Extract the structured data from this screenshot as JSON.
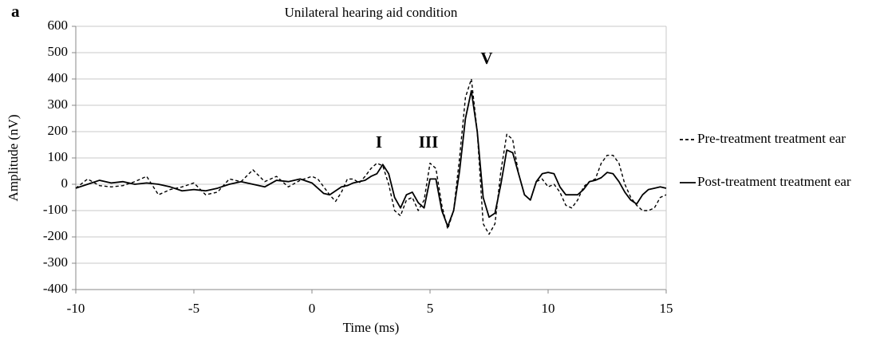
{
  "chart_data": {
    "type": "line",
    "panel_label": "a",
    "title": "Unilateral hearing aid condition",
    "x_label": "Time (ms)",
    "y_label": "Amplitude (nV)",
    "annotations": [
      "I",
      "III",
      "V"
    ],
    "xlim": [
      -10,
      15
    ],
    "xticks": [
      -10,
      -5,
      0,
      5,
      10,
      15
    ],
    "ylim": [
      -400,
      600
    ],
    "yticks": [
      -400,
      -300,
      -200,
      -100,
      0,
      100,
      200,
      300,
      400,
      500,
      600
    ],
    "grid": true,
    "legend": "right",
    "x": [
      -10,
      -9.5,
      -9,
      -8.5,
      -8,
      -7.5,
      -7,
      -6.5,
      -6,
      -5.5,
      -5,
      -4.5,
      -4,
      -3.5,
      -3,
      -2.5,
      -2,
      -1.5,
      -1,
      -0.5,
      0,
      0.25,
      0.5,
      0.75,
      1,
      1.25,
      1.5,
      1.75,
      2,
      2.25,
      2.5,
      2.75,
      3,
      3.25,
      3.5,
      3.75,
      4,
      4.25,
      4.5,
      4.75,
      5,
      5.25,
      5.5,
      5.75,
      6,
      6.25,
      6.5,
      6.75,
      7,
      7.25,
      7.5,
      7.75,
      8,
      8.25,
      8.5,
      8.75,
      9,
      9.25,
      9.5,
      9.75,
      10,
      10.25,
      10.5,
      10.75,
      11,
      11.25,
      11.5,
      11.75,
      12,
      12.25,
      12.5,
      12.75,
      13,
      13.25,
      13.5,
      13.75,
      14,
      14.25,
      14.5,
      14.75,
      15
    ],
    "series": [
      {
        "name": "Pre-treatment treatment ear",
        "color": "#000000",
        "style": "dashed",
        "values": [
          -15,
          20,
          -5,
          -10,
          -5,
          10,
          30,
          -40,
          -20,
          -10,
          5,
          -40,
          -30,
          20,
          10,
          55,
          10,
          30,
          -10,
          15,
          30,
          20,
          -10,
          -40,
          -65,
          -30,
          20,
          20,
          5,
          30,
          60,
          80,
          70,
          0,
          -100,
          -120,
          -60,
          -50,
          -100,
          -60,
          80,
          60,
          -80,
          -170,
          -100,
          100,
          330,
          400,
          200,
          -150,
          -190,
          -150,
          50,
          190,
          170,
          40,
          -40,
          -60,
          10,
          20,
          -10,
          0,
          -30,
          -80,
          -90,
          -60,
          -10,
          10,
          20,
          80,
          110,
          110,
          80,
          0,
          -50,
          -80,
          -100,
          -100,
          -90,
          -50,
          -40
        ]
      },
      {
        "name": "Post-treatment treatment ear",
        "color": "#000000",
        "style": "solid",
        "values": [
          -15,
          0,
          15,
          5,
          10,
          0,
          5,
          0,
          -10,
          -25,
          -20,
          -25,
          -15,
          0,
          10,
          0,
          -10,
          15,
          10,
          20,
          5,
          -15,
          -35,
          -40,
          -25,
          -10,
          -5,
          5,
          10,
          15,
          30,
          40,
          75,
          40,
          -50,
          -90,
          -40,
          -30,
          -70,
          -90,
          20,
          20,
          -100,
          -160,
          -100,
          50,
          250,
          355,
          200,
          -50,
          -125,
          -110,
          0,
          130,
          120,
          40,
          -40,
          -60,
          10,
          40,
          45,
          40,
          -10,
          -40,
          -40,
          -40,
          -20,
          10,
          15,
          25,
          45,
          40,
          10,
          -30,
          -60,
          -75,
          -40,
          -20,
          -15,
          -10,
          -15
        ]
      }
    ]
  }
}
